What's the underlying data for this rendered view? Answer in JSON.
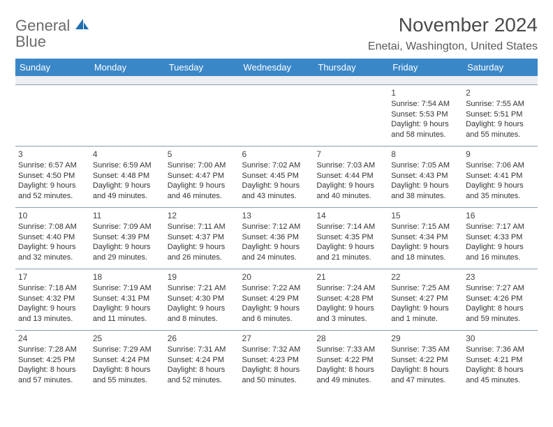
{
  "logo": {
    "word1": "General",
    "word2": "Blue"
  },
  "title": "November 2024",
  "location": "Enetai, Washington, United States",
  "colors": {
    "header_bg": "#3a87c8",
    "header_text": "#ffffff",
    "border": "#8a9bb0",
    "spacer_bg": "#eceef1",
    "logo_gray": "#6b6b6b",
    "logo_blue": "#1f6fb2"
  },
  "day_headers": [
    "Sunday",
    "Monday",
    "Tuesday",
    "Wednesday",
    "Thursday",
    "Friday",
    "Saturday"
  ],
  "weeks": [
    [
      null,
      null,
      null,
      null,
      null,
      {
        "n": "1",
        "sr": "7:54 AM",
        "ss": "5:53 PM",
        "dl": "9 hours and 58 minutes."
      },
      {
        "n": "2",
        "sr": "7:55 AM",
        "ss": "5:51 PM",
        "dl": "9 hours and 55 minutes."
      }
    ],
    [
      {
        "n": "3",
        "sr": "6:57 AM",
        "ss": "4:50 PM",
        "dl": "9 hours and 52 minutes."
      },
      {
        "n": "4",
        "sr": "6:59 AM",
        "ss": "4:48 PM",
        "dl": "9 hours and 49 minutes."
      },
      {
        "n": "5",
        "sr": "7:00 AM",
        "ss": "4:47 PM",
        "dl": "9 hours and 46 minutes."
      },
      {
        "n": "6",
        "sr": "7:02 AM",
        "ss": "4:45 PM",
        "dl": "9 hours and 43 minutes."
      },
      {
        "n": "7",
        "sr": "7:03 AM",
        "ss": "4:44 PM",
        "dl": "9 hours and 40 minutes."
      },
      {
        "n": "8",
        "sr": "7:05 AM",
        "ss": "4:43 PM",
        "dl": "9 hours and 38 minutes."
      },
      {
        "n": "9",
        "sr": "7:06 AM",
        "ss": "4:41 PM",
        "dl": "9 hours and 35 minutes."
      }
    ],
    [
      {
        "n": "10",
        "sr": "7:08 AM",
        "ss": "4:40 PM",
        "dl": "9 hours and 32 minutes."
      },
      {
        "n": "11",
        "sr": "7:09 AM",
        "ss": "4:39 PM",
        "dl": "9 hours and 29 minutes."
      },
      {
        "n": "12",
        "sr": "7:11 AM",
        "ss": "4:37 PM",
        "dl": "9 hours and 26 minutes."
      },
      {
        "n": "13",
        "sr": "7:12 AM",
        "ss": "4:36 PM",
        "dl": "9 hours and 24 minutes."
      },
      {
        "n": "14",
        "sr": "7:14 AM",
        "ss": "4:35 PM",
        "dl": "9 hours and 21 minutes."
      },
      {
        "n": "15",
        "sr": "7:15 AM",
        "ss": "4:34 PM",
        "dl": "9 hours and 18 minutes."
      },
      {
        "n": "16",
        "sr": "7:17 AM",
        "ss": "4:33 PM",
        "dl": "9 hours and 16 minutes."
      }
    ],
    [
      {
        "n": "17",
        "sr": "7:18 AM",
        "ss": "4:32 PM",
        "dl": "9 hours and 13 minutes."
      },
      {
        "n": "18",
        "sr": "7:19 AM",
        "ss": "4:31 PM",
        "dl": "9 hours and 11 minutes."
      },
      {
        "n": "19",
        "sr": "7:21 AM",
        "ss": "4:30 PM",
        "dl": "9 hours and 8 minutes."
      },
      {
        "n": "20",
        "sr": "7:22 AM",
        "ss": "4:29 PM",
        "dl": "9 hours and 6 minutes."
      },
      {
        "n": "21",
        "sr": "7:24 AM",
        "ss": "4:28 PM",
        "dl": "9 hours and 3 minutes."
      },
      {
        "n": "22",
        "sr": "7:25 AM",
        "ss": "4:27 PM",
        "dl": "9 hours and 1 minute."
      },
      {
        "n": "23",
        "sr": "7:27 AM",
        "ss": "4:26 PM",
        "dl": "8 hours and 59 minutes."
      }
    ],
    [
      {
        "n": "24",
        "sr": "7:28 AM",
        "ss": "4:25 PM",
        "dl": "8 hours and 57 minutes."
      },
      {
        "n": "25",
        "sr": "7:29 AM",
        "ss": "4:24 PM",
        "dl": "8 hours and 55 minutes."
      },
      {
        "n": "26",
        "sr": "7:31 AM",
        "ss": "4:24 PM",
        "dl": "8 hours and 52 minutes."
      },
      {
        "n": "27",
        "sr": "7:32 AM",
        "ss": "4:23 PM",
        "dl": "8 hours and 50 minutes."
      },
      {
        "n": "28",
        "sr": "7:33 AM",
        "ss": "4:22 PM",
        "dl": "8 hours and 49 minutes."
      },
      {
        "n": "29",
        "sr": "7:35 AM",
        "ss": "4:22 PM",
        "dl": "8 hours and 47 minutes."
      },
      {
        "n": "30",
        "sr": "7:36 AM",
        "ss": "4:21 PM",
        "dl": "8 hours and 45 minutes."
      }
    ]
  ],
  "labels": {
    "sunrise": "Sunrise:",
    "sunset": "Sunset:",
    "daylight": "Daylight:"
  }
}
